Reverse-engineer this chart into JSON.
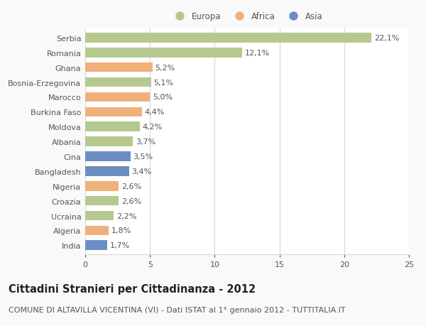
{
  "categories": [
    "Serbia",
    "Romania",
    "Ghana",
    "Bosnia-Erzegovina",
    "Marocco",
    "Burkina Faso",
    "Moldova",
    "Albania",
    "Cina",
    "Bangladesh",
    "Nigeria",
    "Croazia",
    "Ucraina",
    "Algeria",
    "India"
  ],
  "values": [
    22.1,
    12.1,
    5.2,
    5.1,
    5.0,
    4.4,
    4.2,
    3.7,
    3.5,
    3.4,
    2.6,
    2.6,
    2.2,
    1.8,
    1.7
  ],
  "labels": [
    "22,1%",
    "12,1%",
    "5,2%",
    "5,1%",
    "5,0%",
    "4,4%",
    "4,2%",
    "3,7%",
    "3,5%",
    "3,4%",
    "2,6%",
    "2,6%",
    "2,2%",
    "1,8%",
    "1,7%"
  ],
  "continents": [
    "Europa",
    "Europa",
    "Africa",
    "Europa",
    "Africa",
    "Africa",
    "Europa",
    "Europa",
    "Asia",
    "Asia",
    "Africa",
    "Europa",
    "Europa",
    "Africa",
    "Asia"
  ],
  "colors": {
    "Europa": "#b5c98e",
    "Africa": "#f0b07a",
    "Asia": "#6b8fc2"
  },
  "legend_labels": [
    "Europa",
    "Africa",
    "Asia"
  ],
  "xlim": [
    0,
    25
  ],
  "xticks": [
    0,
    5,
    10,
    15,
    20,
    25
  ],
  "title": "Cittadini Stranieri per Cittadinanza - 2012",
  "subtitle": "COMUNE DI ALTAVILLA VICENTINA (VI) - Dati ISTAT al 1° gennaio 2012 - TUTTITALIA.IT",
  "background_color": "#f9f9f9",
  "bar_background": "#ffffff",
  "grid_color": "#d8d8d8",
  "text_color": "#555555",
  "label_fontsize": 8.0,
  "tick_fontsize": 8.0,
  "title_fontsize": 10.5,
  "subtitle_fontsize": 8.0,
  "bar_height": 0.65
}
